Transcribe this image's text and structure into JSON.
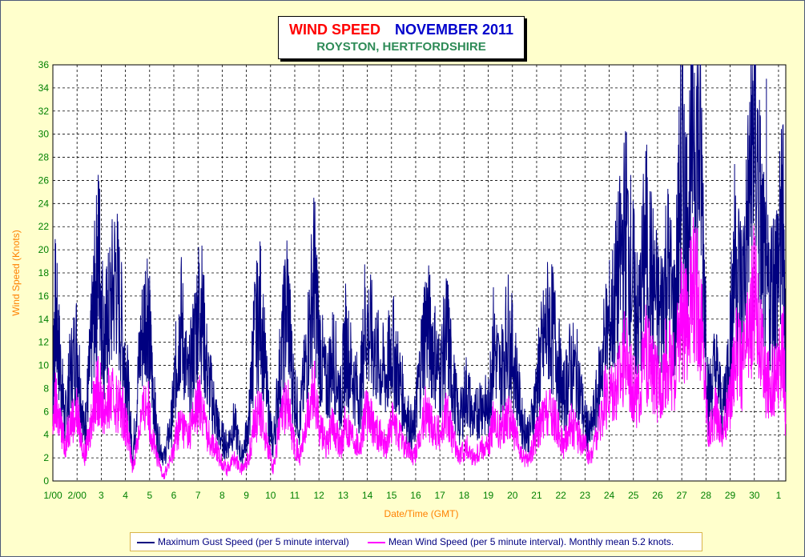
{
  "title": {
    "part1": "WIND SPEED",
    "part2": "NOVEMBER 2011",
    "subtitle": "ROYSTON, HERTFORDSHIRE"
  },
  "colors": {
    "gust": "#000080",
    "mean": "#ff00ff",
    "plot_bg": "#ffffff",
    "grid": "#000000",
    "axis_text": "#008000",
    "axis_label": "#ff8000",
    "title_red": "#ff0000",
    "title_blue": "#0000cc",
    "subtitle": "#2e8b57"
  },
  "chart_data": {
    "type": "line",
    "title": "WIND SPEED NOVEMBER 2011",
    "subtitle": "ROYSTON, HERTFORDSHIRE",
    "xlabel": "Date/Time (GMT)",
    "ylabel": "Wind Speed (Knots)",
    "ylim": [
      0,
      36
    ],
    "xlim": [
      0,
      30.3
    ],
    "yticks": [
      0,
      2,
      4,
      6,
      8,
      10,
      12,
      14,
      16,
      18,
      20,
      22,
      24,
      26,
      28,
      30,
      32,
      34,
      36
    ],
    "xtick_labels": [
      "1/00",
      "2/00",
      "3",
      "4",
      "5",
      "6",
      "7",
      "8",
      "9",
      "10",
      "11",
      "12",
      "13",
      "14",
      "15",
      "16",
      "17",
      "18",
      "19",
      "20",
      "21",
      "22",
      "23",
      "24",
      "25",
      "26",
      "27",
      "28",
      "29",
      "30",
      "1"
    ],
    "grid": true,
    "legend_position": "bottom",
    "series": [
      {
        "name": "Maximum Gust Speed (per 5 minute interval)",
        "color": "#000080",
        "x": [
          0.0,
          0.1,
          0.3,
          0.5,
          0.7,
          1.0,
          1.3,
          1.5,
          1.7,
          1.9,
          2.1,
          2.3,
          2.6,
          2.9,
          3.1,
          3.3,
          3.6,
          3.9,
          4.1,
          4.3,
          4.6,
          4.9,
          5.1,
          5.3,
          5.6,
          5.9,
          6.1,
          6.4,
          6.7,
          6.9,
          7.2,
          7.5,
          7.8,
          8.1,
          8.3,
          8.6,
          8.9,
          9.1,
          9.4,
          9.7,
          9.9,
          10.2,
          10.5,
          10.8,
          11.0,
          11.3,
          11.6,
          11.9,
          12.1,
          12.4,
          12.7,
          12.9,
          13.2,
          13.5,
          13.8,
          14.0,
          14.3,
          14.6,
          14.9,
          15.1,
          15.4,
          15.7,
          16.0,
          16.3,
          16.5,
          16.8,
          17.1,
          17.4,
          17.7,
          18.0,
          18.2,
          18.5,
          18.8,
          19.1,
          19.4,
          19.7,
          20.0,
          20.2,
          20.5,
          20.8,
          21.1,
          21.4,
          21.7,
          22.0,
          22.2,
          22.5,
          22.8,
          23.1,
          23.4,
          23.7,
          24.0,
          24.2,
          24.5,
          24.8,
          25.1,
          25.4,
          25.7,
          26.0,
          26.2,
          26.5,
          26.8,
          27.1,
          27.4,
          27.7,
          28.0,
          28.2,
          28.5,
          28.8,
          29.0,
          29.3,
          29.5,
          29.8,
          30.0,
          30.2,
          30.3
        ],
        "values": [
          8,
          15,
          10,
          5,
          9,
          12,
          4,
          9,
          15,
          20,
          12,
          14,
          18,
          12,
          8,
          2,
          11,
          16,
          9,
          4,
          2,
          5,
          10,
          14,
          8,
          13,
          16,
          9,
          6,
          4,
          3,
          5,
          2,
          5,
          12,
          15,
          6,
          3,
          10,
          16,
          9,
          5,
          11,
          18,
          12,
          8,
          11,
          7,
          12,
          9,
          7,
          14,
          12,
          10,
          9,
          12,
          9,
          6,
          4,
          8,
          14,
          12,
          9,
          13,
          9,
          5,
          8,
          5,
          7,
          6,
          12,
          9,
          13,
          10,
          5,
          4,
          8,
          11,
          14,
          12,
          7,
          10,
          9,
          5,
          4,
          7,
          12,
          14,
          18,
          22,
          17,
          13,
          21,
          17,
          14,
          19,
          14,
          28,
          22,
          32,
          27,
          7,
          10,
          6,
          12,
          20,
          16,
          25,
          32,
          21,
          16,
          17,
          19,
          23,
          7
        ],
        "peak": {
          "x": 29.5,
          "value": 34.8
        }
      },
      {
        "name": "Mean Wind Speed (per 5 minute interval). Monthly mean 5.2 knots.",
        "color": "#ff00ff",
        "x": [
          0.0,
          0.1,
          0.3,
          0.5,
          0.7,
          1.0,
          1.3,
          1.5,
          1.7,
          1.9,
          2.1,
          2.3,
          2.6,
          2.9,
          3.1,
          3.3,
          3.6,
          3.9,
          4.1,
          4.3,
          4.6,
          4.9,
          5.1,
          5.3,
          5.6,
          5.9,
          6.1,
          6.4,
          6.7,
          6.9,
          7.2,
          7.5,
          7.8,
          8.1,
          8.3,
          8.6,
          8.9,
          9.1,
          9.4,
          9.7,
          9.9,
          10.2,
          10.5,
          10.8,
          11.0,
          11.3,
          11.6,
          11.9,
          12.1,
          12.4,
          12.7,
          12.9,
          13.2,
          13.5,
          13.8,
          14.0,
          14.3,
          14.6,
          14.9,
          15.1,
          15.4,
          15.7,
          16.0,
          16.3,
          16.5,
          16.8,
          17.1,
          17.4,
          17.7,
          18.0,
          18.2,
          18.5,
          18.8,
          19.1,
          19.4,
          19.7,
          20.0,
          20.2,
          20.5,
          20.8,
          21.1,
          21.4,
          21.7,
          22.0,
          22.2,
          22.5,
          22.8,
          23.1,
          23.4,
          23.7,
          24.0,
          24.2,
          24.5,
          24.8,
          25.1,
          25.4,
          25.7,
          26.0,
          26.2,
          26.5,
          26.8,
          27.1,
          27.4,
          27.7,
          28.0,
          28.2,
          28.5,
          28.8,
          29.0,
          29.3,
          29.5,
          29.8,
          30.0,
          30.2,
          30.3
        ],
        "values": [
          4,
          7,
          5,
          3,
          5,
          6,
          2,
          4,
          7,
          8,
          6,
          7,
          7,
          6,
          4,
          1,
          5,
          7,
          4,
          2,
          0.5,
          2,
          4,
          5,
          4,
          6,
          7,
          4,
          3,
          2,
          1,
          2,
          1,
          2,
          5,
          6,
          3,
          1,
          5,
          7,
          4,
          2,
          5,
          8,
          5,
          3,
          5,
          3,
          5,
          4,
          3,
          6,
          5,
          4,
          3,
          5,
          4,
          3,
          2,
          3,
          6,
          5,
          4,
          6,
          4,
          2,
          3,
          2,
          3,
          3,
          5,
          4,
          6,
          4,
          2,
          2,
          4,
          5,
          6,
          5,
          3,
          5,
          4,
          3,
          2,
          4,
          7,
          8,
          9,
          11,
          8,
          7,
          11,
          9,
          8,
          11,
          9,
          15,
          13,
          17,
          14,
          4,
          6,
          4,
          7,
          11,
          10,
          13,
          17,
          11,
          8,
          9,
          9,
          12,
          5
        ]
      }
    ]
  }
}
